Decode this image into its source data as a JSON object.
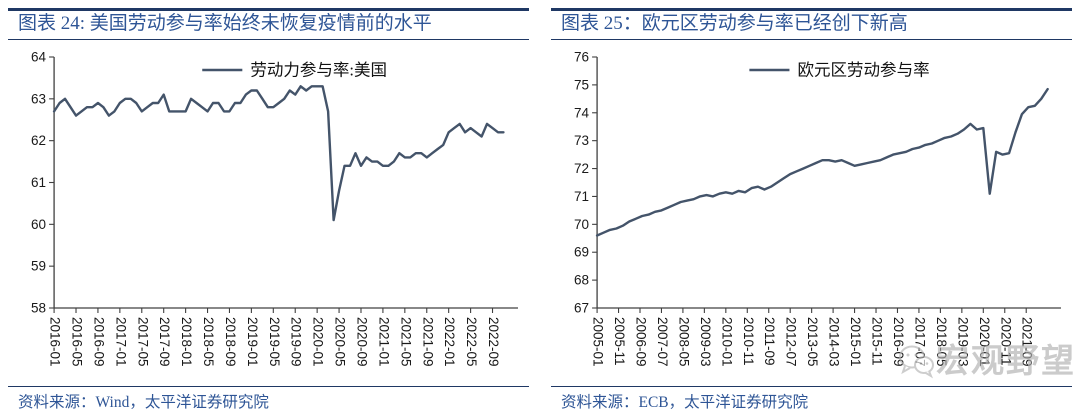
{
  "colors": {
    "line": "#44546A",
    "title_text": "#2E5596",
    "rule": "#1F3864",
    "axis": "#404040"
  },
  "watermark": {
    "text": "宏观野望",
    "icon": "wechat-chat-bubbles-icon"
  },
  "panels": [
    {
      "title": "图表 24: 美国劳动参与率始终未恢复疫情前的水平",
      "source": "资料来源：Wind，太平洋证券研究院",
      "chart_data": {
        "type": "line",
        "legend": "劳动力参与率:美国",
        "ylabel": "",
        "xlabel": "",
        "ylim": [
          58,
          64
        ],
        "ytick_step": 1,
        "grid": false,
        "legend_position": "top-center",
        "x_start": "2016-01",
        "x_point_interval_months": 1,
        "x_tick_interval_months": 4,
        "x_domain_months": [
          0,
          83
        ],
        "x_tick_labels": [
          "2016-01",
          "2016-05",
          "2016-09",
          "2017-01",
          "2017-05",
          "2017-09",
          "2018-01",
          "2018-05",
          "2018-09",
          "2019-01",
          "2019-05",
          "2019-09",
          "2020-01",
          "2020-05",
          "2020-09",
          "2021-01",
          "2021-05",
          "2021-09",
          "2022-01",
          "2022-05",
          "2022-09"
        ],
        "values": [
          62.7,
          62.9,
          63.0,
          62.8,
          62.6,
          62.7,
          62.8,
          62.8,
          62.9,
          62.8,
          62.6,
          62.7,
          62.9,
          63.0,
          63.0,
          62.9,
          62.7,
          62.8,
          62.9,
          62.9,
          63.1,
          62.7,
          62.7,
          62.7,
          62.7,
          63.0,
          62.9,
          62.8,
          62.7,
          62.9,
          62.9,
          62.7,
          62.7,
          62.9,
          62.9,
          63.1,
          63.2,
          63.2,
          63.0,
          62.8,
          62.8,
          62.9,
          63.0,
          63.2,
          63.1,
          63.3,
          63.2,
          63.3,
          63.3,
          63.3,
          62.7,
          60.1,
          60.8,
          61.4,
          61.4,
          61.7,
          61.4,
          61.6,
          61.5,
          61.5,
          61.4,
          61.4,
          61.5,
          61.7,
          61.6,
          61.6,
          61.7,
          61.7,
          61.6,
          61.7,
          61.8,
          61.9,
          62.2,
          62.3,
          62.4,
          62.2,
          62.3,
          62.2,
          62.1,
          62.4,
          62.3,
          62.2,
          62.2
        ]
      }
    },
    {
      "title": "图表 25：欧元区劳动参与率已经创下新高",
      "source": "资料来源：ECB，太平洋证券研究院",
      "chart_data": {
        "type": "line",
        "legend": "欧元区劳动参与率",
        "ylabel": "",
        "xlabel": "",
        "ylim": [
          67,
          76
        ],
        "ytick_step": 1,
        "grid": false,
        "legend_position": "top-center",
        "x_start": "2005-01",
        "x_point_interval_months": 3,
        "x_tick_interval_months": 10,
        "x_domain_months": [
          0,
          212
        ],
        "x_tick_labels": [
          "2005-01",
          "2005-11",
          "2006-09",
          "2007-07",
          "2008-05",
          "2009-03",
          "2010-01",
          "2010-11",
          "2011-09",
          "2012-07",
          "2013-05",
          "2014-03",
          "2015-01",
          "2015-11",
          "2016-09",
          "2017-07",
          "2018-05",
          "2019-03",
          "2020-01",
          "2020-11",
          "2021-09"
        ],
        "values": [
          69.6,
          69.7,
          69.8,
          69.85,
          69.95,
          70.1,
          70.2,
          70.3,
          70.35,
          70.45,
          70.5,
          70.6,
          70.7,
          70.8,
          70.85,
          70.9,
          71.0,
          71.05,
          71.0,
          71.1,
          71.15,
          71.1,
          71.2,
          71.15,
          71.3,
          71.35,
          71.25,
          71.35,
          71.5,
          71.65,
          71.8,
          71.9,
          72.0,
          72.1,
          72.2,
          72.3,
          72.3,
          72.25,
          72.3,
          72.2,
          72.1,
          72.15,
          72.2,
          72.25,
          72.3,
          72.4,
          72.5,
          72.55,
          72.6,
          72.7,
          72.75,
          72.85,
          72.9,
          73.0,
          73.1,
          73.15,
          73.25,
          73.4,
          73.6,
          73.4,
          73.45,
          71.1,
          72.6,
          72.5,
          72.55,
          73.3,
          73.95,
          74.2,
          74.25,
          74.5,
          74.85
        ]
      }
    }
  ]
}
